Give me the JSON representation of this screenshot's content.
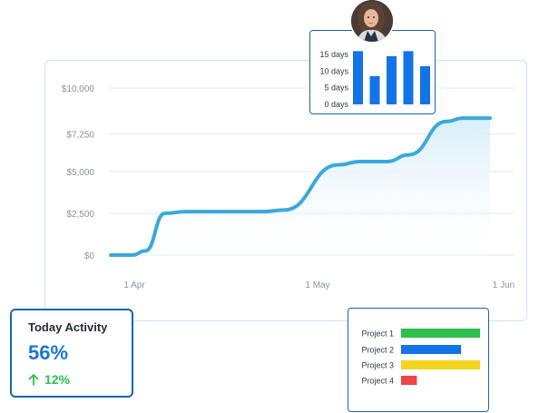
{
  "main_chart": {
    "chart_data": {
      "type": "area",
      "x_labels": [
        "1 Apr",
        "1 May",
        "1 Jun"
      ],
      "y_tick_labels": [
        "$10,000",
        "$7,250",
        "$5,000",
        "$2,500",
        "$0"
      ],
      "y_ticks": [
        10000,
        7250,
        5000,
        2500,
        0
      ],
      "ylim": [
        0,
        10000
      ],
      "grid": true,
      "line_color": "#3aa9dc",
      "fill_color": "#d6eef9",
      "series": [
        {
          "points": [
            {
              "x": 0,
              "y": 0
            },
            {
              "x": 2,
              "y": 0
            },
            {
              "x": 3.2,
              "y": 250
            },
            {
              "x": 5,
              "y": 2500
            },
            {
              "x": 7,
              "y": 2600
            },
            {
              "x": 14,
              "y": 2600
            },
            {
              "x": 16,
              "y": 2700
            },
            {
              "x": 21,
              "y": 5400
            },
            {
              "x": 23,
              "y": 5600
            },
            {
              "x": 25.5,
              "y": 5600
            },
            {
              "x": 27.5,
              "y": 6000
            },
            {
              "x": 31,
              "y": 8000
            },
            {
              "x": 32.5,
              "y": 8200
            },
            {
              "x": 35,
              "y": 8200
            }
          ]
        }
      ]
    }
  },
  "mini_chart": {
    "chart_data": {
      "type": "bar",
      "y_tick_labels": [
        "15 days",
        "10 days",
        "5 days",
        "0 days"
      ],
      "y_ticks": [
        15,
        10,
        5,
        0
      ],
      "ylim": [
        0,
        15
      ],
      "values": [
        16,
        8.5,
        14.5,
        16,
        11.5
      ],
      "bar_color": "#1473e6"
    }
  },
  "activity": {
    "title": "Today Activity",
    "value": "56%",
    "change": "12%",
    "change_icon": "arrow-up-icon",
    "value_color": "#1876d9",
    "change_color": "#2fbf4f"
  },
  "projects": {
    "chart_data": {
      "type": "bar",
      "orientation": "horizontal",
      "categories": [
        "Project 1",
        "Project 2",
        "Project 3",
        "Project 4"
      ],
      "values": [
        100,
        76,
        100,
        20
      ],
      "colors": [
        "#2fbf4f",
        "#1473e6",
        "#f5d41f",
        "#ef4444"
      ]
    }
  },
  "avatar": {
    "icon": "user-avatar"
  }
}
